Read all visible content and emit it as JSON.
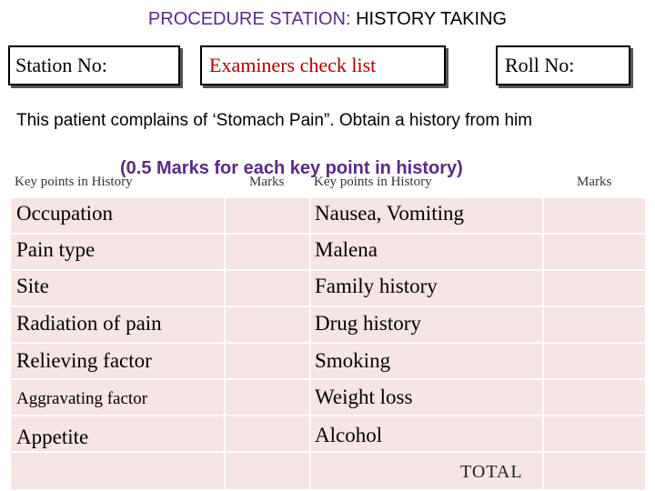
{
  "header": {
    "title_part1": "PROCEDURE STATION: ",
    "title_part2": "HISTORY TAKING"
  },
  "boxes": {
    "station": "Station No:",
    "examiner": "Examiners check list",
    "roll": "Roll No:"
  },
  "instruction": "This patient complains of ‘Stomach Pain”. Obtain a history from him",
  "marks_note": "(0.5 Marks for each key point in history)",
  "table": {
    "headers": {
      "key_points_left": "Key points in History",
      "marks_left": "Marks",
      "key_points_right": "Key points in History",
      "marks_right": "Marks"
    },
    "left_items": [
      "Occupation",
      "Pain type",
      "Site",
      "Radiation of pain",
      "Relieving factor",
      "Aggravating factor",
      "Appetite"
    ],
    "right_items": [
      "Nausea, Vomiting",
      "Malena",
      "Family history",
      "Drug history",
      "Smoking",
      "Weight loss",
      "Alcohol"
    ],
    "total_label": "TOTAL"
  },
  "colors": {
    "cell_fill": "#f7e4e4",
    "title_accent": "#5b2a87",
    "examiner_text": "#b00000"
  }
}
